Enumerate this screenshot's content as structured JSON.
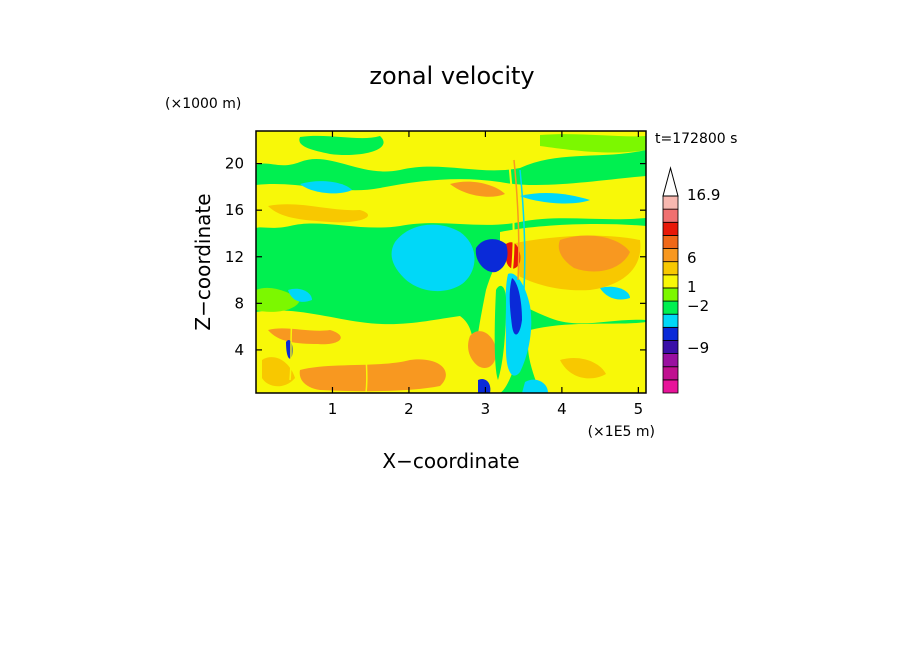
{
  "chart_data": {
    "type": "heatmap",
    "title": "zonal velocity",
    "xlabel": "X−coordinate",
    "ylabel": "Z−coordinate",
    "x_unit": "(×1E5 m)",
    "y_unit": "(×1000 m)",
    "time_label": "t=172800 s",
    "xlim": [
      0,
      5.1
    ],
    "ylim": [
      0.3,
      22.8
    ],
    "x_ticks": [
      "1",
      "2",
      "3",
      "4",
      "5"
    ],
    "x_tick_values": [
      1,
      2,
      3,
      4,
      5
    ],
    "y_ticks": [
      "4",
      "8",
      "12",
      "16",
      "20"
    ],
    "y_tick_values": [
      4,
      8,
      12,
      16,
      20
    ],
    "colorbar": {
      "levels": [
        {
          "color": "#e8149a"
        },
        {
          "color": "#c01090"
        },
        {
          "color": "#9a10a0"
        },
        {
          "color": "#3a10a8"
        },
        {
          "color": "#0a2ad8"
        },
        {
          "color": "#00d8f8"
        },
        {
          "color": "#00f050"
        },
        {
          "color": "#7cf800"
        },
        {
          "color": "#f8f808"
        },
        {
          "color": "#f8c800"
        },
        {
          "color": "#f89820"
        },
        {
          "color": "#f06818"
        },
        {
          "color": "#e81808"
        },
        {
          "color": "#f07070"
        },
        {
          "color": "#f8b8b0"
        }
      ],
      "labels": [
        "16.9",
        "6",
        "1",
        "−2",
        "−9"
      ],
      "label_values": [
        16.9,
        6,
        1,
        -2,
        -9
      ],
      "extend": "max"
    },
    "colors": {
      "blue": "#0a2ad8",
      "cyan": "#00d8f8",
      "green": "#00f050",
      "lime": "#7cf800",
      "yellow": "#f8f808",
      "gold": "#f8c800",
      "orange": "#f89820",
      "red": "#e81808"
    }
  }
}
